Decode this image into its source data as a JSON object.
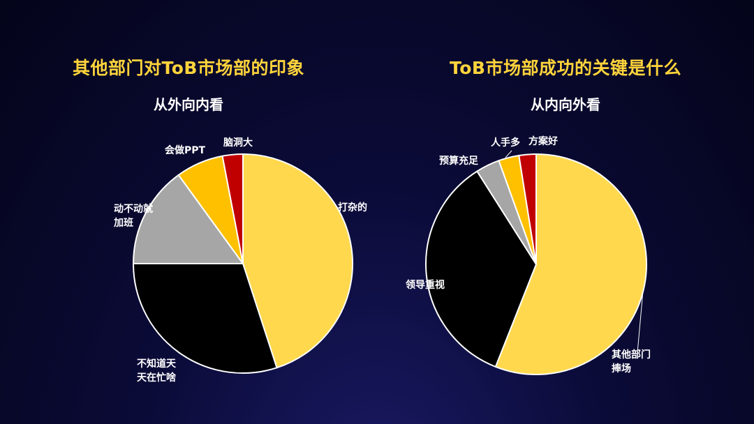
{
  "chart_data": [
    {
      "type": "pie",
      "title": "其他部门对ToB市场部的印象",
      "subtitle": "从外向内看",
      "slices": [
        {
          "label": [
            "打杂的"
          ],
          "value": 45,
          "color": "#ffd84d"
        },
        {
          "label": [
            "不知道天",
            "天在忙啥"
          ],
          "value": 30,
          "color": "#000000"
        },
        {
          "label": [
            "动不动就",
            "加班"
          ],
          "value": 15,
          "color": "#a6a6a6"
        },
        {
          "label": [
            "会做PPT"
          ],
          "value": 7,
          "color": "#ffc000"
        },
        {
          "label": [
            "脑洞大"
          ],
          "value": 3,
          "color": "#c00000"
        }
      ]
    },
    {
      "type": "pie",
      "title": "ToB市场部成功的关键是什么",
      "subtitle": "从内向外看",
      "slices": [
        {
          "label": [
            "其他部门",
            "捧场"
          ],
          "value": 56,
          "color": "#ffd84d"
        },
        {
          "label": [
            "领导重视"
          ],
          "value": 35,
          "color": "#000000"
        },
        {
          "label": [
            "预算充足"
          ],
          "value": 3.5,
          "color": "#a6a6a6"
        },
        {
          "label": [
            "人手多"
          ],
          "value": 3,
          "color": "#ffc000"
        },
        {
          "label": [
            "方案好"
          ],
          "value": 2.5,
          "color": "#c00000"
        }
      ]
    }
  ]
}
